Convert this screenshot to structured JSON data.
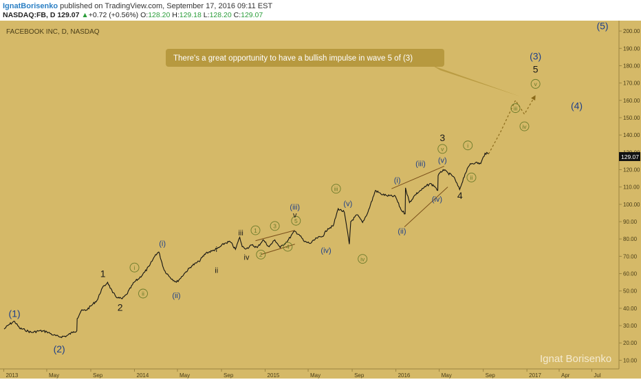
{
  "header": {
    "author": "IgnatBorisenko",
    "published": "published on TradingView.com, September 17, 2016 09:11 EST",
    "symbol": "NASDAQ:FB, D",
    "last": "129.07",
    "arrow": "▲",
    "change": "+0.72 (+0.56%)",
    "o_label": "O:",
    "o": "128.20",
    "h_label": "H:",
    "h": "129.18",
    "l_label": "L:",
    "l": "128.20",
    "c_label": "C:",
    "c": "129.07"
  },
  "chart_title": "FACEBOOK INC, D, NASDAQ",
  "watermark": "Ignat Borisenko",
  "price_label": "129.07",
  "annotation": "There's a great opportunity to have a bullish impulse in wave 5 of (3)",
  "colors": {
    "background": "#d5b968",
    "price_line": "#111111",
    "wave_blue": "#1d3f8a",
    "wave_green": "#6a7a2a",
    "wave_black": "#1a1a1a",
    "trend_lines": "#7a4f1a",
    "callout": "#b7993f",
    "forecast": "#8a6a1a"
  },
  "chart_data": {
    "type": "line",
    "title": "FACEBOOK INC, D, NASDAQ",
    "x_ticks": [
      "2013",
      "May",
      "Sep",
      "2014",
      "May",
      "Sep",
      "2015",
      "May",
      "Sep",
      "2016",
      "May",
      "Sep",
      "2017",
      "Apr",
      "Jul"
    ],
    "y_ticks": [
      10,
      20,
      30,
      40,
      50,
      60,
      70,
      80,
      90,
      100,
      110,
      120,
      130,
      140,
      150,
      160,
      170,
      180,
      190,
      200
    ],
    "y_tick_labels": [
      "10.00",
      "20.00",
      "30.00",
      "40.00",
      "50.00",
      "60.00",
      "70.00",
      "80.00",
      "90.00",
      "100.00",
      "110.00",
      "120.00",
      "130.00",
      "140.00",
      "150.00",
      "160.00",
      "170.00",
      "180.00",
      "190.00",
      "200.00"
    ],
    "ylim": [
      5,
      206
    ],
    "x_range": [
      "2013-01-02",
      "2017-07-31"
    ],
    "grid": false,
    "last_price": 129.07,
    "series": [
      {
        "values": [
          [
            "2013-01-02",
            28.0
          ],
          [
            "2013-01-15",
            30.5
          ],
          [
            "2013-01-31",
            32.5
          ],
          [
            "2013-02-14",
            28.5
          ],
          [
            "2013-03-01",
            27.5
          ],
          [
            "2013-03-20",
            26.0
          ],
          [
            "2013-04-10",
            27.0
          ],
          [
            "2013-05-01",
            26.5
          ],
          [
            "2013-05-20",
            24.5
          ],
          [
            "2013-06-05",
            23.5
          ],
          [
            "2013-06-25",
            24.0
          ],
          [
            "2013-07-15",
            26.5
          ],
          [
            "2013-07-24",
            27.0
          ],
          [
            "2013-07-25",
            34.0
          ],
          [
            "2013-08-05",
            38.5
          ],
          [
            "2013-08-20",
            39.0
          ],
          [
            "2013-09-05",
            42.0
          ],
          [
            "2013-09-20",
            45.0
          ],
          [
            "2013-10-01",
            51.0
          ],
          [
            "2013-10-18",
            55.0
          ],
          [
            "2013-11-01",
            49.0
          ],
          [
            "2013-11-15",
            46.0
          ],
          [
            "2013-11-28",
            45.5
          ],
          [
            "2013-12-10",
            48.0
          ],
          [
            "2013-12-31",
            55.0
          ],
          [
            "2014-01-15",
            57.5
          ],
          [
            "2014-01-30",
            61.0
          ],
          [
            "2014-02-12",
            64.5
          ],
          [
            "2014-03-01",
            71.0
          ],
          [
            "2014-03-10",
            72.5
          ],
          [
            "2014-03-25",
            62.0
          ],
          [
            "2014-04-10",
            58.0
          ],
          [
            "2014-04-28",
            55.0
          ],
          [
            "2014-05-08",
            57.0
          ],
          [
            "2014-05-20",
            60.0
          ],
          [
            "2014-06-10",
            64.5
          ],
          [
            "2014-06-30",
            67.0
          ],
          [
            "2014-07-20",
            72.0
          ],
          [
            "2014-08-05",
            73.0
          ],
          [
            "2014-08-25",
            75.0
          ],
          [
            "2014-09-10",
            77.5
          ],
          [
            "2014-09-25",
            78.5
          ],
          [
            "2014-10-10",
            74.0
          ],
          [
            "2014-10-22",
            81.0
          ],
          [
            "2014-10-29",
            75.5
          ],
          [
            "2014-11-10",
            74.5
          ],
          [
            "2014-11-25",
            76.5
          ],
          [
            "2014-12-10",
            75.0
          ],
          [
            "2014-12-26",
            79.5
          ],
          [
            "2015-01-12",
            75.5
          ],
          [
            "2015-01-28",
            79.5
          ],
          [
            "2015-02-12",
            75.0
          ],
          [
            "2015-03-05",
            79.0
          ],
          [
            "2015-03-24",
            84.5
          ],
          [
            "2015-04-06",
            82.5
          ],
          [
            "2015-04-20",
            78.5
          ],
          [
            "2015-05-08",
            77.5
          ],
          [
            "2015-05-25",
            80.5
          ],
          [
            "2015-06-10",
            81.5
          ],
          [
            "2015-06-25",
            86.0
          ],
          [
            "2015-07-10",
            87.5
          ],
          [
            "2015-07-24",
            97.5
          ],
          [
            "2015-08-10",
            95.5
          ],
          [
            "2015-08-24",
            77.0
          ],
          [
            "2015-08-28",
            90.0
          ],
          [
            "2015-09-15",
            94.0
          ],
          [
            "2015-09-30",
            89.5
          ],
          [
            "2015-10-15",
            95.5
          ],
          [
            "2015-11-05",
            108.0
          ],
          [
            "2015-11-20",
            106.0
          ],
          [
            "2015-12-07",
            105.0
          ],
          [
            "2015-12-31",
            104.5
          ],
          [
            "2016-01-15",
            97.0
          ],
          [
            "2016-01-27",
            94.5
          ],
          [
            "2016-01-28",
            109.5
          ],
          [
            "2016-02-08",
            101.0
          ],
          [
            "2016-02-24",
            105.5
          ],
          [
            "2016-03-10",
            108.0
          ],
          [
            "2016-04-05",
            112.0
          ],
          [
            "2016-04-18",
            110.5
          ],
          [
            "2016-04-27",
            108.0
          ],
          [
            "2016-04-28",
            116.5
          ],
          [
            "2016-05-12",
            120.0
          ],
          [
            "2016-05-26",
            118.0
          ],
          [
            "2016-06-10",
            116.0
          ],
          [
            "2016-06-27",
            108.5
          ],
          [
            "2016-07-12",
            117.5
          ],
          [
            "2016-07-27",
            123.5
          ],
          [
            "2016-08-10",
            124.0
          ],
          [
            "2016-08-25",
            123.5
          ],
          [
            "2016-09-06",
            129.5
          ],
          [
            "2016-09-16",
            129.07
          ]
        ]
      },
      {
        "values": [
          [
            "2016-09-16",
            129.07
          ],
          [
            "2016-10-20",
            142.0
          ],
          [
            "2016-11-30",
            160.0
          ],
          [
            "2016-12-25",
            152.0
          ],
          [
            "2017-01-25",
            163.0
          ]
        ]
      }
    ],
    "wave_labels": [
      {
        "text": "(1)",
        "date": "2013-01-31",
        "price": 37.0,
        "style": "blue"
      },
      {
        "text": "(2)",
        "date": "2013-06-05",
        "price": 16.5,
        "style": "blue"
      },
      {
        "text": "1",
        "date": "2013-10-05",
        "price": 60.0,
        "style": "black"
      },
      {
        "text": "2",
        "date": "2013-11-22",
        "price": 40.5,
        "style": "black"
      },
      {
        "text": "i",
        "date": "2014-01-01",
        "price": 63.5,
        "style": "green_circle"
      },
      {
        "text": "ii",
        "date": "2014-01-25",
        "price": 48.5,
        "style": "green_circle"
      },
      {
        "text": "(i)",
        "date": "2014-03-20",
        "price": 77.5,
        "style": "blue_small"
      },
      {
        "text": "(ii)",
        "date": "2014-04-28",
        "price": 47.5,
        "style": "blue_small"
      },
      {
        "text": "i",
        "date": "2014-08-18",
        "price": 74.0,
        "style": "black_small"
      },
      {
        "text": "ii",
        "date": "2014-08-18",
        "price": 62.0,
        "style": "black_small"
      },
      {
        "text": "iii",
        "date": "2014-10-25",
        "price": 83.5,
        "style": "black_small"
      },
      {
        "text": "iv",
        "date": "2014-11-10",
        "price": 69.5,
        "style": "black_small"
      },
      {
        "text": "1",
        "date": "2014-12-05",
        "price": 85.0,
        "style": "green_circle"
      },
      {
        "text": "2",
        "date": "2014-12-20",
        "price": 71.0,
        "style": "green_circle"
      },
      {
        "text": "3",
        "date": "2015-01-28",
        "price": 87.5,
        "style": "green_circle"
      },
      {
        "text": "4",
        "date": "2015-03-05",
        "price": 75.5,
        "style": "green_circle"
      },
      {
        "text": "5",
        "date": "2015-03-28",
        "price": 90.5,
        "style": "green_circle"
      },
      {
        "text": "(iii)",
        "date": "2015-03-25",
        "price": 98.5,
        "style": "blue_small"
      },
      {
        "text": "v",
        "date": "2015-03-25",
        "price": 94.0,
        "style": "black_small"
      },
      {
        "text": "(iv)",
        "date": "2015-06-20",
        "price": 73.5,
        "style": "blue_small"
      },
      {
        "text": "(v)",
        "date": "2015-08-20",
        "price": 100.5,
        "style": "blue_small"
      },
      {
        "text": "iii",
        "date": "2015-07-18",
        "price": 109.0,
        "style": "green_circle"
      },
      {
        "text": "iv",
        "date": "2015-09-30",
        "price": 68.5,
        "style": "green_circle"
      },
      {
        "text": "(i)",
        "date": "2016-01-05",
        "price": 114.0,
        "style": "blue_small"
      },
      {
        "text": "(ii)",
        "date": "2016-01-18",
        "price": 84.5,
        "style": "blue_small"
      },
      {
        "text": "(iii)",
        "date": "2016-03-10",
        "price": 123.5,
        "style": "blue_small"
      },
      {
        "text": "(iv)",
        "date": "2016-04-25",
        "price": 103.0,
        "style": "blue_small"
      },
      {
        "text": "(v)",
        "date": "2016-05-10",
        "price": 125.5,
        "style": "blue_small"
      },
      {
        "text": "v",
        "date": "2016-05-10",
        "price": 132.0,
        "style": "green_circle"
      },
      {
        "text": "3",
        "date": "2016-05-10",
        "price": 138.5,
        "style": "black"
      },
      {
        "text": "4",
        "date": "2016-06-28",
        "price": 105.0,
        "style": "black"
      },
      {
        "text": "i",
        "date": "2016-07-20",
        "price": 134.0,
        "style": "green_circle"
      },
      {
        "text": "ii",
        "date": "2016-07-30",
        "price": 115.5,
        "style": "green_circle"
      },
      {
        "text": "iii",
        "date": "2016-11-30",
        "price": 155.5,
        "style": "green_circle"
      },
      {
        "text": "iv",
        "date": "2016-12-25",
        "price": 145.0,
        "style": "green_circle"
      },
      {
        "text": "v",
        "date": "2017-01-25",
        "price": 169.5,
        "style": "green_circle"
      },
      {
        "text": "5",
        "date": "2017-01-25",
        "price": 178.0,
        "style": "black"
      },
      {
        "text": "(3)",
        "date": "2017-01-25",
        "price": 185.5,
        "style": "blue"
      },
      {
        "text": "(4)",
        "date": "2017-05-20",
        "price": 157.0,
        "style": "blue"
      },
      {
        "text": "(5)",
        "date": "2017-07-31",
        "price": 203.0,
        "style": "blue"
      }
    ],
    "trend_lines": [
      [
        [
          "2014-12-05",
          79.0
        ],
        [
          "2015-03-25",
          85.0
        ]
      ],
      [
        [
          "2014-12-20",
          71.0
        ],
        [
          "2015-03-25",
          77.0
        ]
      ],
      [
        [
          "2015-12-20",
          109.0
        ],
        [
          "2016-05-15",
          122.0
        ]
      ],
      [
        [
          "2016-01-25",
          87.0
        ],
        [
          "2016-05-25",
          110.0
        ]
      ]
    ]
  }
}
